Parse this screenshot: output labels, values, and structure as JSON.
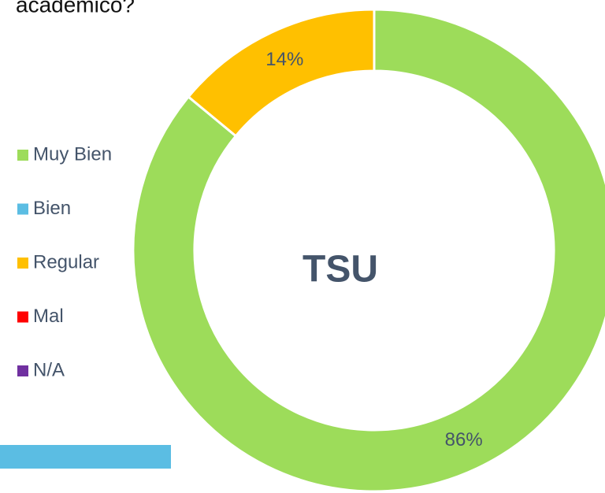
{
  "chart_data": {
    "type": "donut",
    "title": "académico?",
    "center_label": "TSU",
    "categories": [
      "Muy Bien",
      "Bien",
      "Regular",
      "Mal",
      "N/A"
    ],
    "values": [
      86,
      0,
      14,
      0,
      0
    ],
    "value_labels": [
      "86%",
      null,
      "14%",
      null,
      null
    ],
    "colors": [
      "#9ddc5a",
      "#5bbde3",
      "#ffc000",
      "#ff0000",
      "#7030a0"
    ],
    "legend": "left"
  }
}
